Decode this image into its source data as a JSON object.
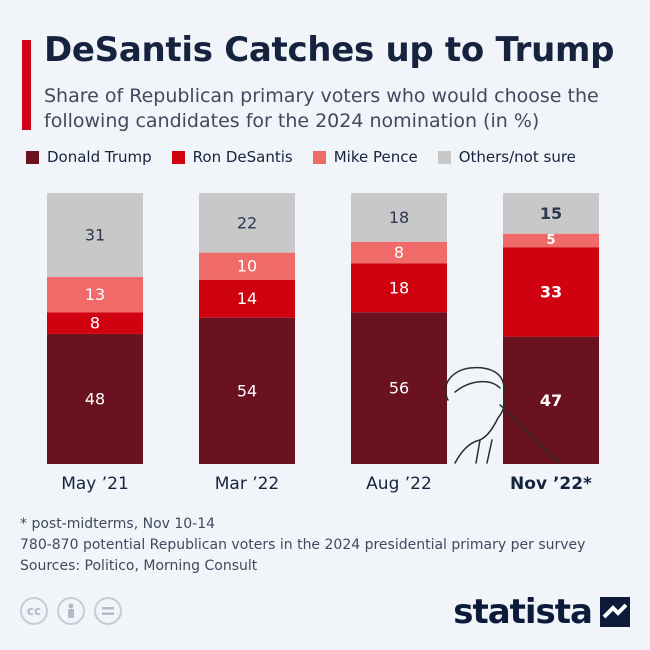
{
  "header": {
    "title": "DeSantis Catches up to Trump",
    "subtitle": "Share of Republican primary voters who would choose the following candidates for the 2024 nomination (in %)"
  },
  "legend": [
    {
      "label": "Donald Trump",
      "color": "#6b1220"
    },
    {
      "label": "Ron DeSantis",
      "color": "#d0020f"
    },
    {
      "label": "Mike Pence",
      "color": "#f06a6a"
    },
    {
      "label": "Others/not sure",
      "color": "#c8c8c8"
    }
  ],
  "chart_data": {
    "type": "bar",
    "stacked": true,
    "categories": [
      "May ’21",
      "Mar ’22",
      "Aug ’22",
      "Nov ’22*"
    ],
    "series": [
      {
        "name": "Donald Trump",
        "color": "#6b1220",
        "values": [
          48,
          54,
          56,
          47
        ]
      },
      {
        "name": "Ron DeSantis",
        "color": "#d0020f",
        "values": [
          8,
          14,
          18,
          33
        ]
      },
      {
        "name": "Mike Pence",
        "color": "#f06a6a",
        "values": [
          13,
          10,
          8,
          5
        ]
      },
      {
        "name": "Others/not sure",
        "color": "#c8c8c8",
        "values": [
          31,
          22,
          18,
          15
        ]
      }
    ],
    "highlighted_category": "Nov ’22*",
    "ylim": [
      0,
      100
    ],
    "grid": false
  },
  "footnotes": {
    "asterisk": "* post-midterms, Nov 10-14",
    "sample": "780-870 potential Republican voters in the 2024 presidential primary per survey",
    "sources": "Sources: Politico, Morning Consult"
  },
  "license_icons": [
    "cc-icon",
    "by-icon",
    "nd-icon"
  ],
  "brand": {
    "name": "statista"
  }
}
